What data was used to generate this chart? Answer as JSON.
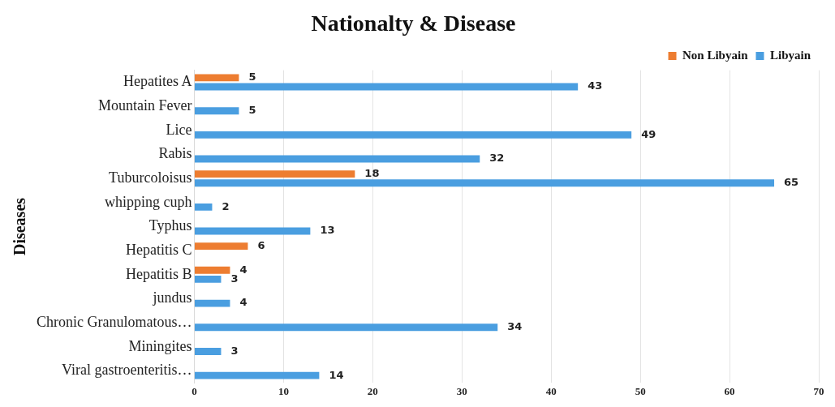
{
  "chart_data": {
    "type": "bar",
    "orientation": "horizontal",
    "title": "Nationalty & Disease",
    "ylabel": "Diseases",
    "categories": [
      "Hepatites A",
      "Mountain Fever",
      "Lice",
      "Rabis",
      "Tuburcoloisus",
      "whipping cuph",
      "Typhus",
      "Hepatitis C",
      "Hepatitis B",
      "jundus",
      "Chronic Granulomatous…",
      "Miningites",
      "Viral gastroenteritis…"
    ],
    "series": [
      {
        "name": "Non Libyain",
        "color": "#ed7d31",
        "values": [
          5,
          null,
          null,
          null,
          18,
          null,
          null,
          6,
          4,
          null,
          null,
          null,
          null
        ]
      },
      {
        "name": "Libyain",
        "color": "#4a9ee0",
        "values": [
          43,
          5,
          49,
          32,
          65,
          2,
          13,
          null,
          3,
          4,
          34,
          3,
          14
        ]
      }
    ],
    "xlim": [
      0,
      70
    ],
    "xticks": [
      0,
      10,
      20,
      30,
      40,
      50,
      60,
      70
    ],
    "grid": "x",
    "legend": "top right",
    "data_labels": true
  }
}
